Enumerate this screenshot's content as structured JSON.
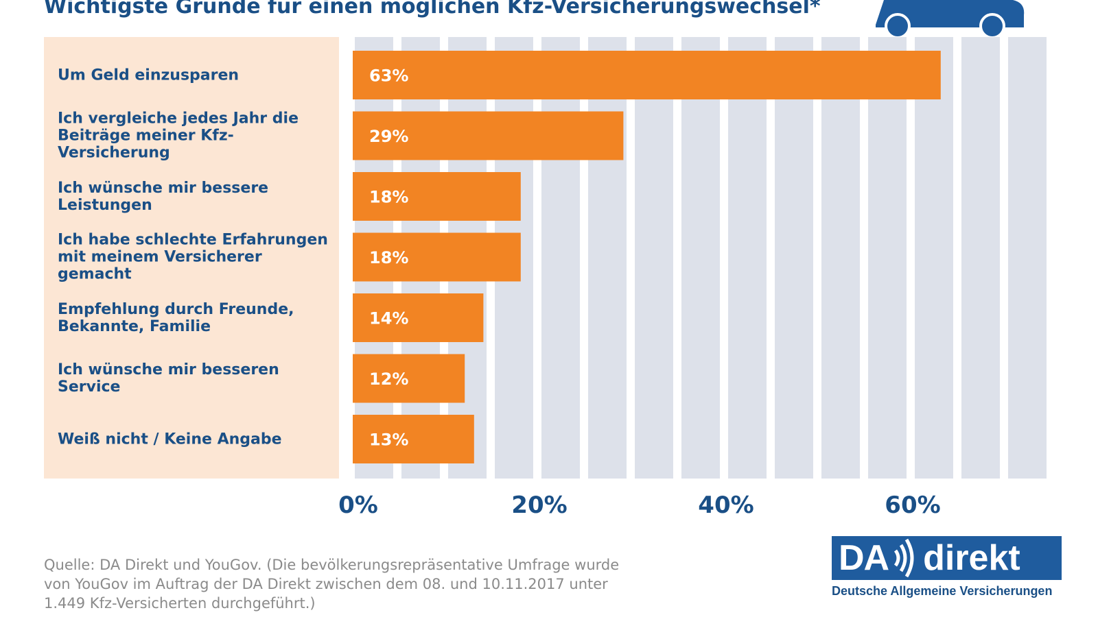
{
  "title": "Wichtigste Gründe für einen möglichen Kfz-Versicherungswechsel*",
  "chart_data": {
    "type": "bar",
    "orientation": "horizontal",
    "title": "Wichtigste Gründe für einen möglichen Kfz-Versicherungswechsel*",
    "categories": [
      "Um Geld einzusparen",
      "Ich vergleiche jedes Jahr die\nBeiträge meiner Kfz-Versicherung",
      "Ich wünsche mir bessere\nLeistungen",
      "Ich habe schlechte Erfahrungen\nmit meinem Versicherer gemacht",
      "Empfehlung durch Freunde,\nBekannte, Familie",
      "Ich wünsche mir besseren Service",
      "Weiß nicht / Keine Angabe"
    ],
    "values": [
      63,
      29,
      18,
      18,
      14,
      12,
      13
    ],
    "value_labels": [
      "63%",
      "29%",
      "18%",
      "18%",
      "14%",
      "12%",
      "13%"
    ],
    "xlim": [
      0,
      75
    ],
    "ticks": [
      0,
      20,
      40,
      60
    ],
    "tick_labels": [
      "0%",
      "20%",
      "40%",
      "60%"
    ],
    "xlabel": "",
    "ylabel": "",
    "colors": {
      "bar": "#f28423",
      "stripe": "#dde1ea",
      "label_panel": "#fce6d4",
      "text": "#1a4f86"
    }
  },
  "footer": {
    "source_lines": [
      "Quelle: DA Direkt und YouGov. (Die bevölkerungsrepräsentative Umfrage wurde",
      "von YouGov im Auftrag der DA Direkt zwischen dem 08. und 10.11.2017 unter",
      "1.449 Kfz-Versicherten durchgeführt.)"
    ]
  },
  "logo": {
    "part1": "DA",
    "part2": "direkt",
    "subtitle": "Deutsche Allgemeine Versicherungen",
    "color": "#1f5c9e"
  }
}
